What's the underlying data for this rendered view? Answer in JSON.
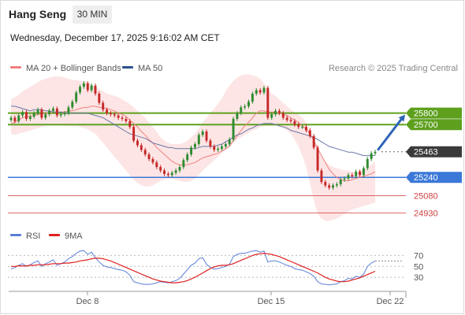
{
  "header": {
    "instrument": "Hang Seng",
    "timeframe": "30 MIN",
    "datetime": "Wednesday, December 17, 2025 9:16:02 AM CET"
  },
  "legend": {
    "items": [
      {
        "label": "MA 20 + Bollinger Bands",
        "color": "#f08080"
      },
      {
        "label": "MA 50",
        "color": "#2b4f8c"
      }
    ],
    "credit": "Research © 2025 Trading Central"
  },
  "rsi_legend": {
    "items": [
      {
        "label": "RSI",
        "color": "#5b7fd6"
      },
      {
        "label": "9MA",
        "color": "#e02020"
      }
    ]
  },
  "chart_data": [
    {
      "type": "line",
      "panel": "price",
      "title": "",
      "x_ticks": [
        "Dec 8",
        "Dec 15",
        "Dec 22"
      ],
      "ylim": [
        24850,
        26100
      ],
      "levels": [
        {
          "value": 25800,
          "label": "25800",
          "kind": "resistance",
          "color": "#5ea01e"
        },
        {
          "value": 25700,
          "label": "25700",
          "kind": "resistance",
          "color": "#5ea01e"
        },
        {
          "value": 25463,
          "label": "25463",
          "kind": "last",
          "color": "#3a3a3a"
        },
        {
          "value": 25240,
          "label": "25240",
          "kind": "support",
          "color": "#3b78d8"
        },
        {
          "value": 25080,
          "label": "25080",
          "kind": "support",
          "color": "#d04040"
        },
        {
          "value": 24930,
          "label": "24930",
          "kind": "support",
          "color": "#d04040"
        }
      ],
      "price": [
        25760,
        25730,
        25780,
        25810,
        25750,
        25770,
        25800,
        25830,
        25760,
        25790,
        25820,
        25840,
        25780,
        25790,
        25800,
        25850,
        25900,
        25980,
        26030,
        26060,
        26000,
        26040,
        25970,
        25890,
        25830,
        25800,
        25790,
        25780,
        25760,
        25750,
        25730,
        25680,
        25560,
        25520,
        25480,
        25440,
        25400,
        25370,
        25330,
        25300,
        25270,
        25260,
        25280,
        25300,
        25330,
        25390,
        25440,
        25500,
        25530,
        25610,
        25640,
        25560,
        25510,
        25480,
        25490,
        25510,
        25530,
        25570,
        25750,
        25800,
        25850,
        25860,
        25900,
        25970,
        26000,
        25980,
        26020,
        25760,
        25790,
        25820,
        25800,
        25760,
        25740,
        25730,
        25700,
        25680,
        25680,
        25650,
        25600,
        25500,
        25300,
        25200,
        25170,
        25150,
        25170,
        25180,
        25220,
        25230,
        25260,
        25250,
        25290,
        25260,
        25320,
        25400,
        25450,
        25463
      ],
      "ma20": [
        25710,
        25720,
        25740,
        25760,
        25770,
        25770,
        25780,
        25790,
        25790,
        25800,
        25800,
        25810,
        25810,
        25810,
        25810,
        25820,
        25820,
        25830,
        25840,
        25850,
        25850,
        25860,
        25860,
        25850,
        25850,
        25840,
        25830,
        25820,
        25800,
        25790,
        25770,
        25740,
        25710,
        25680,
        25640,
        25610,
        25570,
        25540,
        25500,
        25470,
        25440,
        25410,
        25380,
        25360,
        25350,
        25350,
        25350,
        25360,
        25370,
        25390,
        25410,
        25420,
        25430,
        25440,
        25450,
        25470,
        25490,
        25510,
        25560,
        25600,
        25650,
        25690,
        25720,
        25760,
        25800,
        25820,
        25820,
        25810,
        25810,
        25810,
        25800,
        25790,
        25780,
        25760,
        25740,
        25720,
        25690,
        25660,
        25620,
        25560,
        25490,
        25430,
        25370,
        25310,
        25270,
        25240,
        25220,
        25210,
        25210,
        25220,
        25230,
        25240,
        25250,
        25260,
        25270,
        25290
      ],
      "bb_upper": [
        25920,
        25940,
        25960,
        25990,
        26010,
        26030,
        26050,
        26070,
        26090,
        26100,
        26110,
        26120,
        26120,
        26120,
        26110,
        26100,
        26090,
        26090,
        26080,
        26080,
        26070,
        26050,
        26030,
        26010,
        25990,
        25970,
        25960,
        25950,
        25940,
        25920,
        25900,
        25880,
        25850,
        25820,
        25790,
        25760,
        25720,
        25680,
        25640,
        25590,
        25560,
        25540,
        25530,
        25530,
        25530,
        25540,
        25560,
        25590,
        25620,
        25670,
        25720,
        25760,
        25800,
        25840,
        25880,
        25930,
        25990,
        26040,
        26080,
        26110,
        26130,
        26140,
        26140,
        26130,
        26120,
        26100,
        26060,
        26010,
        25970,
        25950,
        25920,
        25890,
        25860,
        25830,
        25810,
        25790,
        25760,
        25720,
        25650,
        25560,
        25470,
        25420,
        25380,
        25350,
        25330,
        25320,
        25310,
        25300,
        25300,
        25290,
        25290,
        25300,
        25310,
        25330,
        25350,
        25380
      ],
      "bb_lower": [
        25620,
        25610,
        25620,
        25630,
        25640,
        25650,
        25660,
        25670,
        25680,
        25690,
        25690,
        25700,
        25700,
        25690,
        25690,
        25690,
        25690,
        25690,
        25680,
        25670,
        25660,
        25640,
        25620,
        25580,
        25540,
        25500,
        25460,
        25420,
        25380,
        25340,
        25300,
        25260,
        25220,
        25190,
        25170,
        25160,
        25160,
        25170,
        25190,
        25210,
        25220,
        25230,
        25230,
        25220,
        25210,
        25200,
        25200,
        25210,
        25230,
        25260,
        25300,
        25330,
        25360,
        25390,
        25420,
        25450,
        25480,
        25510,
        25540,
        25570,
        25590,
        25610,
        25630,
        25650,
        25660,
        25680,
        25690,
        25690,
        25690,
        25690,
        25680,
        25670,
        25650,
        25620,
        25570,
        25510,
        25430,
        25330,
        25190,
        25040,
        24920,
        24880,
        24860,
        24860,
        24870,
        24880,
        24900,
        24920,
        24940,
        24960,
        24970,
        24980,
        24990,
        25000,
        25010,
        25020
      ],
      "ma50": [
        25860,
        25860,
        25850,
        25840,
        25830,
        25820,
        25830,
        25830,
        25830,
        25820,
        25820,
        25810,
        25810,
        25810,
        25800,
        25800,
        25800,
        25800,
        25800,
        25800,
        25800,
        25790,
        25780,
        25770,
        25760,
        25740,
        25720,
        25700,
        25680,
        25660,
        25640,
        25620,
        25610,
        25600,
        25590,
        25580,
        25560,
        25540,
        25530,
        25520,
        25510,
        25500,
        25500,
        25490,
        25490,
        25490,
        25490,
        25490,
        25490,
        25500,
        25510,
        25510,
        25510,
        25510,
        25520,
        25530,
        25550,
        25570,
        25590,
        25610,
        25620,
        25640,
        25660,
        25670,
        25690,
        25700,
        25710,
        25710,
        25710,
        25700,
        25690,
        25680,
        25670,
        25650,
        25640,
        25630,
        25620,
        25610,
        25600,
        25590,
        25570,
        25550,
        25530,
        25510,
        25500,
        25490,
        25480,
        25470,
        25460,
        25460,
        25450,
        25440,
        25430,
        25430,
        25430,
        25430
      ]
    },
    {
      "type": "line",
      "panel": "rsi",
      "title": "",
      "ylim": [
        10,
        85
      ],
      "y_ticks": [
        70,
        50,
        30
      ],
      "series": [
        {
          "name": "RSI",
          "values": [
            45,
            48,
            52,
            55,
            50,
            53,
            57,
            60,
            50,
            55,
            58,
            62,
            52,
            55,
            58,
            64,
            68,
            74,
            78,
            79,
            72,
            76,
            66,
            58,
            52,
            49,
            48,
            46,
            44,
            43,
            40,
            34,
            22,
            20,
            18,
            17,
            17,
            18,
            20,
            22,
            21,
            20,
            22,
            24,
            28,
            36,
            44,
            52,
            56,
            64,
            66,
            54,
            48,
            45,
            46,
            48,
            50,
            54,
            68,
            72,
            74,
            74,
            76,
            78,
            79,
            76,
            78,
            58,
            60,
            60,
            58,
            55,
            52,
            50,
            46,
            44,
            43,
            40,
            37,
            32,
            22,
            18,
            17,
            16,
            17,
            18,
            22,
            24,
            28,
            27,
            32,
            30,
            36,
            50,
            56,
            60
          ]
        },
        {
          "name": "9MA",
          "values": [
            50,
            50,
            51,
            51,
            51,
            52,
            52,
            53,
            53,
            53,
            54,
            55,
            55,
            55,
            56,
            56,
            57,
            58,
            60,
            61,
            62,
            64,
            65,
            65,
            64,
            62,
            60,
            57,
            54,
            51,
            48,
            45,
            42,
            39,
            36,
            33,
            30,
            27,
            25,
            23,
            22,
            21,
            20,
            20,
            21,
            22,
            24,
            27,
            30,
            34,
            38,
            42,
            46,
            49,
            51,
            52,
            52,
            53,
            55,
            58,
            61,
            64,
            67,
            70,
            72,
            73,
            74,
            73,
            72,
            70,
            68,
            65,
            62,
            59,
            56,
            53,
            50,
            47,
            44,
            41,
            38,
            34,
            30,
            27,
            25,
            23,
            22,
            22,
            23,
            25,
            27,
            29,
            32,
            35,
            38,
            41
          ]
        }
      ]
    }
  ]
}
